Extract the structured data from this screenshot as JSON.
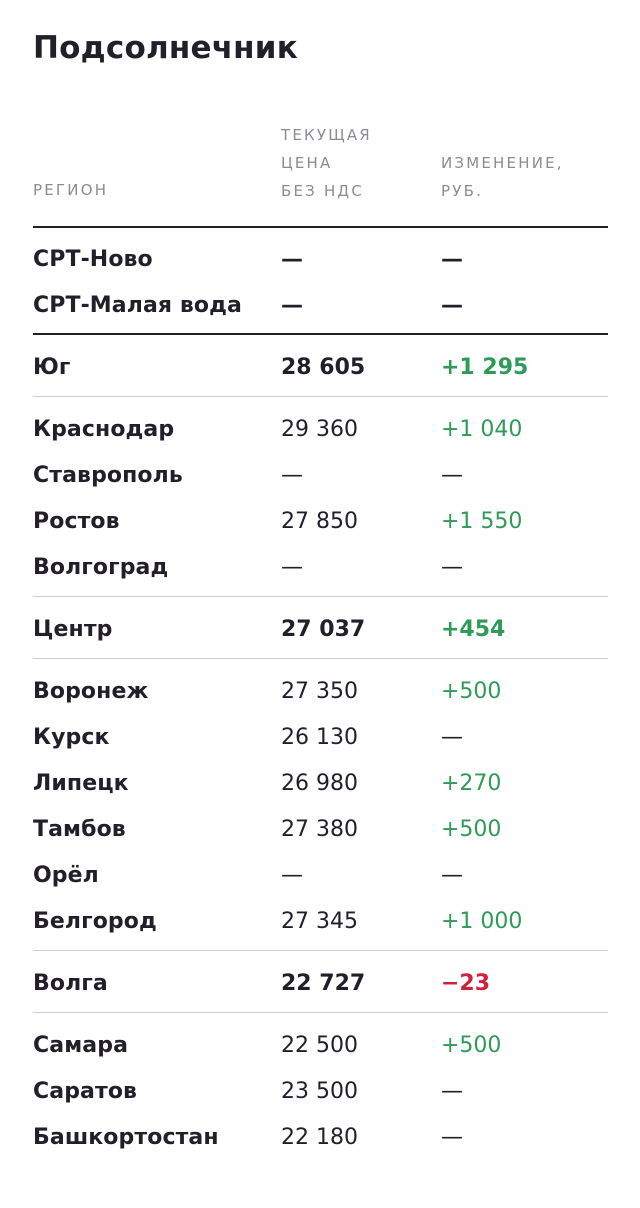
{
  "title": "Подсолнечник",
  "headers": {
    "region": "РЕГИОН",
    "price": "ТЕКУЩАЯ\nЦЕНА\nБЕЗ НДС",
    "change": "ИЗМЕНЕНИЕ,\nРУБ."
  },
  "colors": {
    "text": "#231f2a",
    "muted": "#8e8a94",
    "positive": "#2e9b57",
    "negative": "#d0213a",
    "rule_dark": "#231f2a",
    "rule_light": "#cfcdd3"
  },
  "rows": [
    {
      "region": "СРТ-Ново",
      "price": "—",
      "change": "—",
      "kind": "srt"
    },
    {
      "region": "СРТ-Малая вода",
      "price": "—",
      "change": "—",
      "kind": "srt"
    },
    {
      "region": "Юг",
      "price": "28 605",
      "change": "+1 295",
      "kind": "group"
    },
    {
      "region": "Краснодар",
      "price": "29 360",
      "change": "+1 040",
      "kind": "item"
    },
    {
      "region": "Ставрополь",
      "price": "—",
      "change": "—",
      "kind": "item"
    },
    {
      "region": "Ростов",
      "price": "27 850",
      "change": "+1 550",
      "kind": "item"
    },
    {
      "region": "Волгоград",
      "price": "—",
      "change": "—",
      "kind": "item"
    },
    {
      "region": "Центр",
      "price": "27 037",
      "change": "+454",
      "kind": "group"
    },
    {
      "region": "Воронеж",
      "price": "27 350",
      "change": "+500",
      "kind": "item"
    },
    {
      "region": "Курск",
      "price": "26 130",
      "change": "—",
      "kind": "item"
    },
    {
      "region": "Липецк",
      "price": "26 980",
      "change": "+270",
      "kind": "item"
    },
    {
      "region": "Тамбов",
      "price": "27 380",
      "change": "+500",
      "kind": "item"
    },
    {
      "region": "Орёл",
      "price": "—",
      "change": "—",
      "kind": "item"
    },
    {
      "region": "Белгород",
      "price": "27 345",
      "change": "+1 000",
      "kind": "item"
    },
    {
      "region": "Волга",
      "price": "22 727",
      "change": "−23",
      "kind": "group"
    },
    {
      "region": "Самара",
      "price": "22 500",
      "change": "+500",
      "kind": "item"
    },
    {
      "region": "Саратов",
      "price": "23 500",
      "change": "—",
      "kind": "item"
    },
    {
      "region": "Башкортостан",
      "price": "22 180",
      "change": "—",
      "kind": "item"
    }
  ]
}
